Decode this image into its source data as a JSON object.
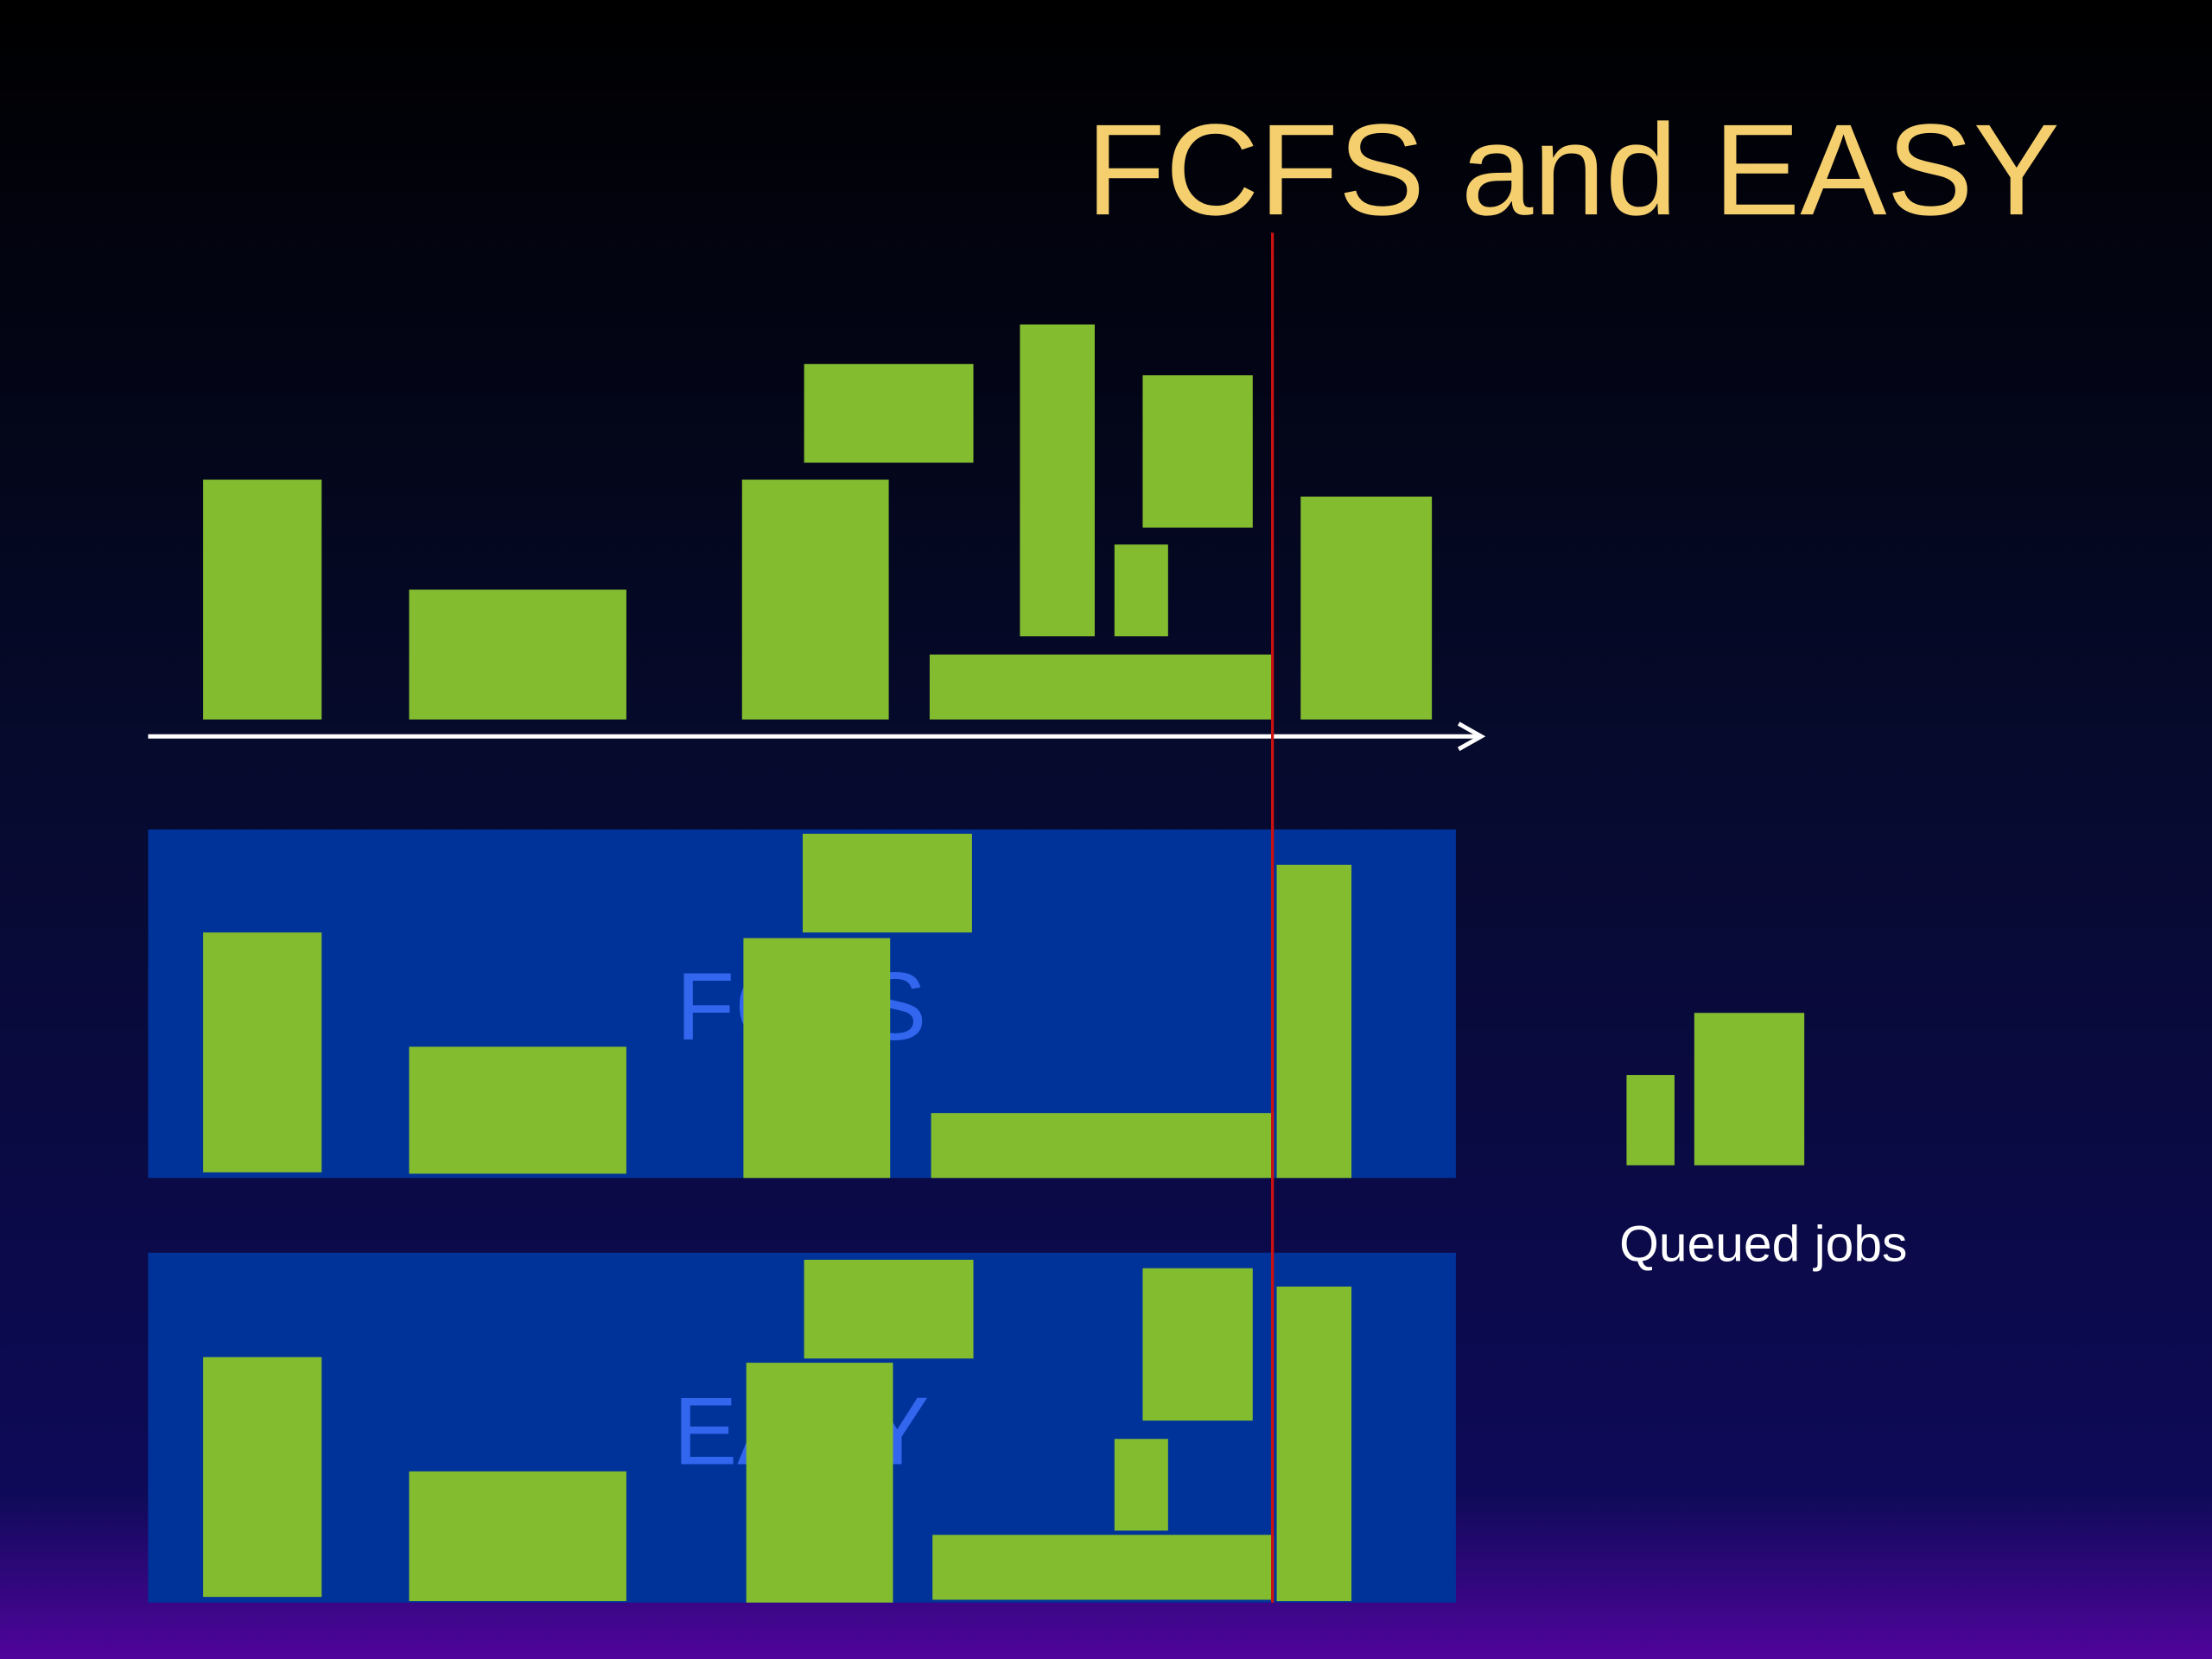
{
  "title": "FCFS and EASY",
  "panels": [
    {
      "label": "FCFS"
    },
    {
      "label": "EASY"
    }
  ],
  "queue_label": "Queued jobs"
}
